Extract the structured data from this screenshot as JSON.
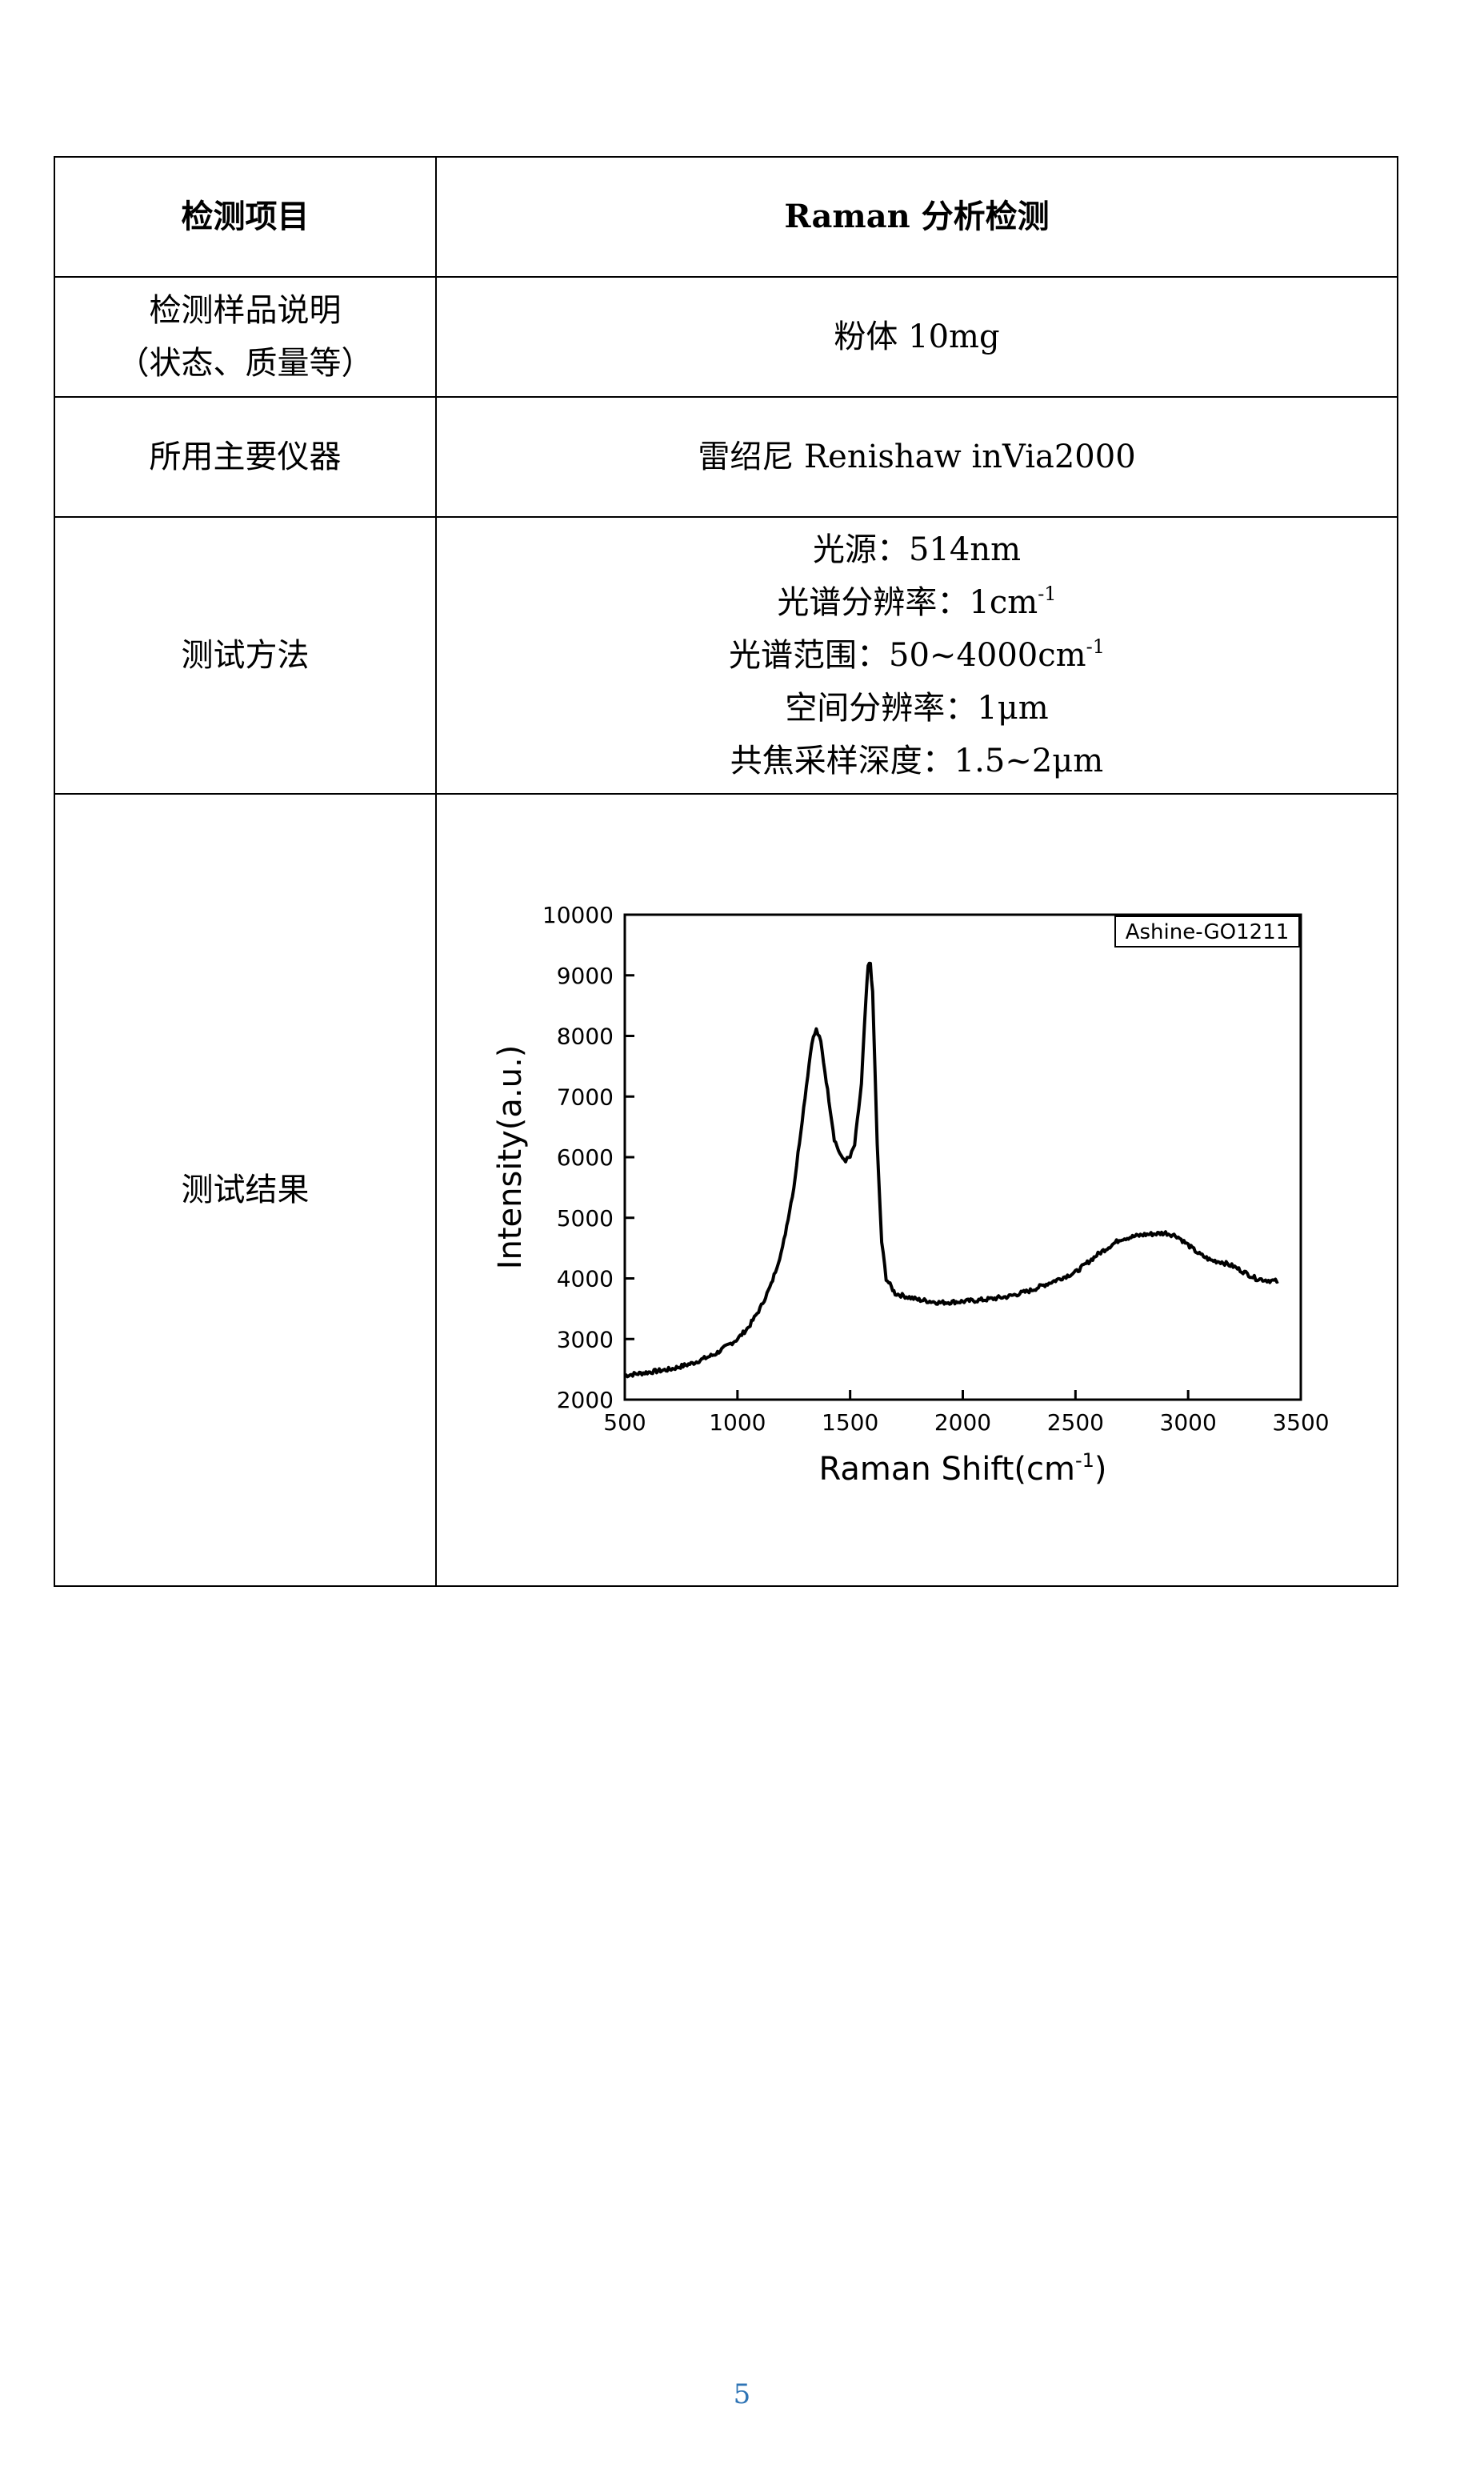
{
  "table": {
    "header": {
      "label": "检测项目",
      "value": "Raman 分析检测"
    },
    "sample": {
      "label_line1": "检测样品说明",
      "label_line2": "（状态、质量等）",
      "value": "粉体 10mg"
    },
    "instrument": {
      "label": "所用主要仪器",
      "value": "雷绍尼  Renishaw inVia2000"
    },
    "method": {
      "label": "测试方法",
      "lines": [
        {
          "text": "光源：514nm",
          "sup": ""
        },
        {
          "text": "光谱分辨率：1cm",
          "sup": "-1"
        },
        {
          "text": "光谱范围：50~4000cm",
          "sup": "-1"
        },
        {
          "text": "空间分辨率：1μm",
          "sup": ""
        },
        {
          "text": "共焦采样深度：1.5~2μm",
          "sup": ""
        }
      ]
    },
    "result": {
      "label": "测试结果"
    }
  },
  "chart_data": {
    "type": "line",
    "legend_label": "Ashine-GO1211",
    "legend_position": "top-right",
    "xlabel": "Raman Shift(cm",
    "xlabel_sup": "-1",
    "xlabel_end": ")",
    "ylabel": "Intensity(a.u.)",
    "xlim": [
      500,
      3500
    ],
    "ylim": [
      2000,
      10000
    ],
    "xticks": [
      500,
      1000,
      1500,
      2000,
      2500,
      3000,
      3500
    ],
    "yticks": [
      2000,
      3000,
      4000,
      5000,
      6000,
      7000,
      8000,
      9000,
      10000
    ],
    "grid": false,
    "line_color": "#000000",
    "series": [
      {
        "x": [
          500,
          600,
          700,
          800,
          900,
          1000,
          1050,
          1100,
          1150,
          1200,
          1250,
          1300,
          1330,
          1350,
          1370,
          1400,
          1430,
          1460,
          1480,
          1500,
          1520,
          1550,
          1570,
          1580,
          1590,
          1600,
          1610,
          1620,
          1640,
          1660,
          1700,
          1750,
          1800,
          1900,
          2000,
          2100,
          2200,
          2300,
          2400,
          2500,
          2600,
          2700,
          2800,
          2900,
          2950,
          3000,
          3050,
          3100,
          3150,
          3200,
          3250,
          3300,
          3350,
          3400
        ],
        "y": [
          2400,
          2450,
          2500,
          2600,
          2750,
          3000,
          3200,
          3500,
          3900,
          4500,
          5500,
          7000,
          7900,
          8100,
          7900,
          7100,
          6300,
          6000,
          5950,
          6000,
          6200,
          7200,
          8600,
          9150,
          9200,
          8700,
          7500,
          6200,
          4600,
          4000,
          3750,
          3700,
          3650,
          3600,
          3620,
          3650,
          3700,
          3800,
          3950,
          4100,
          4400,
          4650,
          4720,
          4750,
          4700,
          4550,
          4400,
          4300,
          4270,
          4200,
          4100,
          4000,
          3970,
          3950
        ]
      }
    ]
  },
  "page_number": "5"
}
